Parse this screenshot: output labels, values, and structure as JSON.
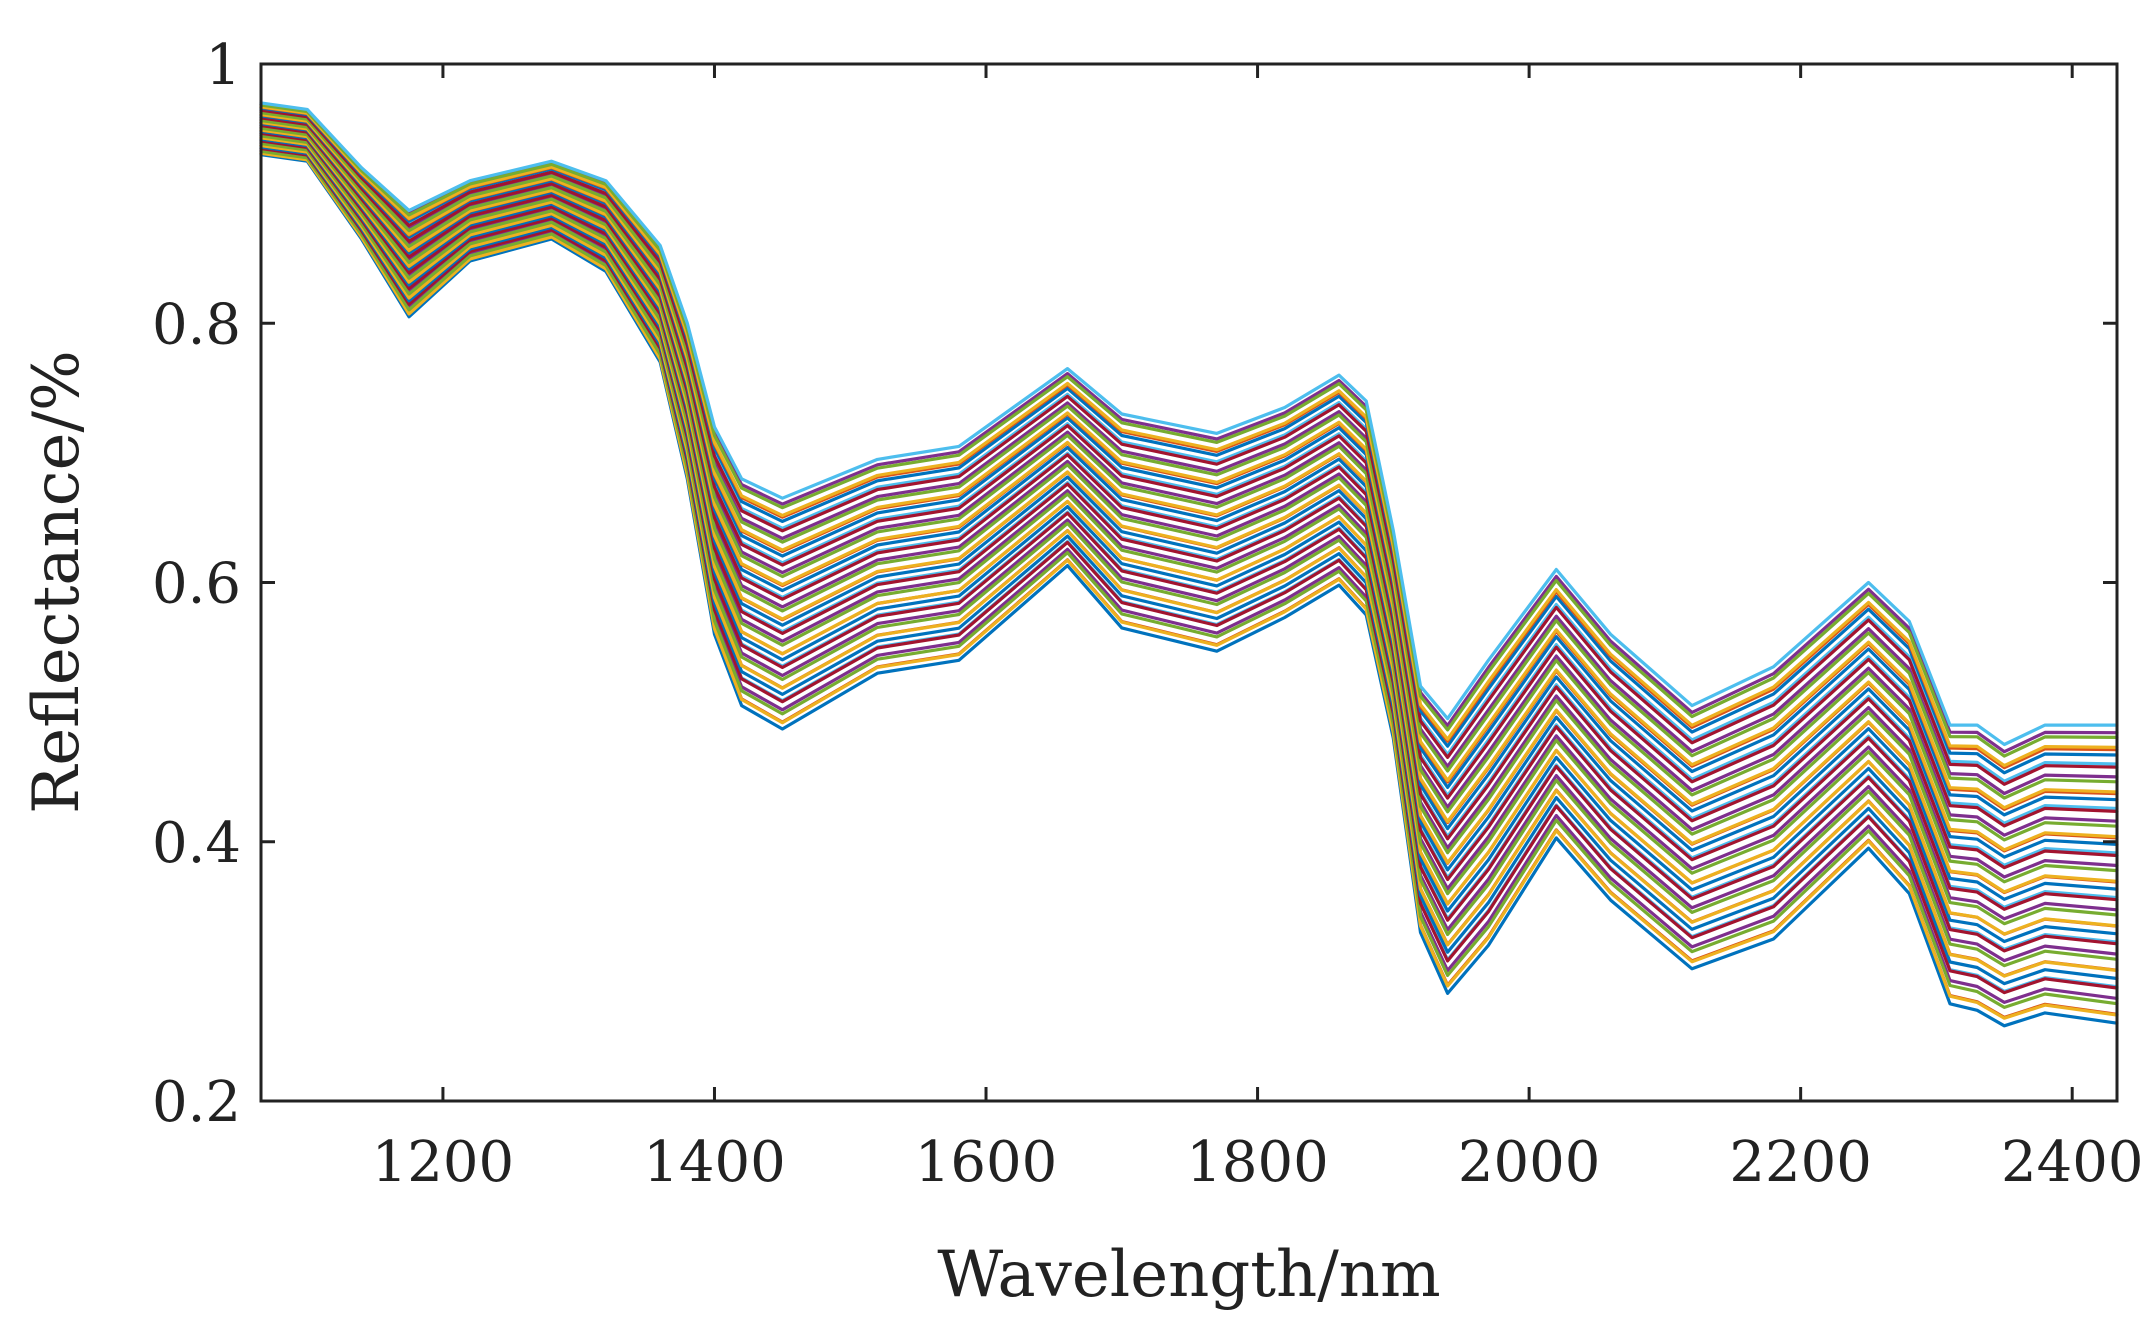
{
  "chart_data": {
    "type": "line",
    "title": "",
    "xlabel": "Wavelength/nm",
    "ylabel": "Reflectance/%",
    "xlim": [
      1066,
      2433
    ],
    "ylim": [
      0.2,
      1.0
    ],
    "x_ticks": [
      1200,
      1400,
      1600,
      1800,
      2000,
      2200,
      2400
    ],
    "y_ticks": [
      0.2,
      0.4,
      0.6,
      0.8,
      1.0
    ],
    "y_tick_labels": [
      "0.2",
      "0.4",
      "0.6",
      "0.8",
      "1"
    ],
    "grid": false,
    "legend": "none",
    "x": [
      1066,
      1100,
      1140,
      1175,
      1220,
      1280,
      1320,
      1360,
      1380,
      1400,
      1420,
      1450,
      1520,
      1580,
      1660,
      1700,
      1770,
      1820,
      1860,
      1880,
      1900,
      1920,
      1940,
      1970,
      2020,
      2060,
      2120,
      2180,
      2250,
      2280,
      2310,
      2330,
      2350,
      2380,
      2433
    ],
    "envelope": {
      "upper": [
        0.97,
        0.965,
        0.92,
        0.887,
        0.91,
        0.925,
        0.91,
        0.86,
        0.8,
        0.72,
        0.68,
        0.665,
        0.695,
        0.705,
        0.765,
        0.73,
        0.715,
        0.735,
        0.76,
        0.74,
        0.64,
        0.52,
        0.495,
        0.54,
        0.61,
        0.56,
        0.505,
        0.535,
        0.6,
        0.57,
        0.49,
        0.49,
        0.475,
        0.49,
        0.49
      ],
      "lower": [
        0.93,
        0.925,
        0.865,
        0.805,
        0.848,
        0.865,
        0.84,
        0.77,
        0.68,
        0.56,
        0.505,
        0.487,
        0.53,
        0.54,
        0.613,
        0.565,
        0.547,
        0.573,
        0.598,
        0.575,
        0.48,
        0.33,
        0.283,
        0.32,
        0.403,
        0.355,
        0.302,
        0.325,
        0.395,
        0.36,
        0.275,
        0.27,
        0.258,
        0.268,
        0.26
      ]
    },
    "series_count": 48,
    "series_colors": [
      "#0072BD",
      "#D95319",
      "#EDB120",
      "#7E2F8E",
      "#77AC30",
      "#4DBEEE",
      "#A2142F"
    ]
  }
}
